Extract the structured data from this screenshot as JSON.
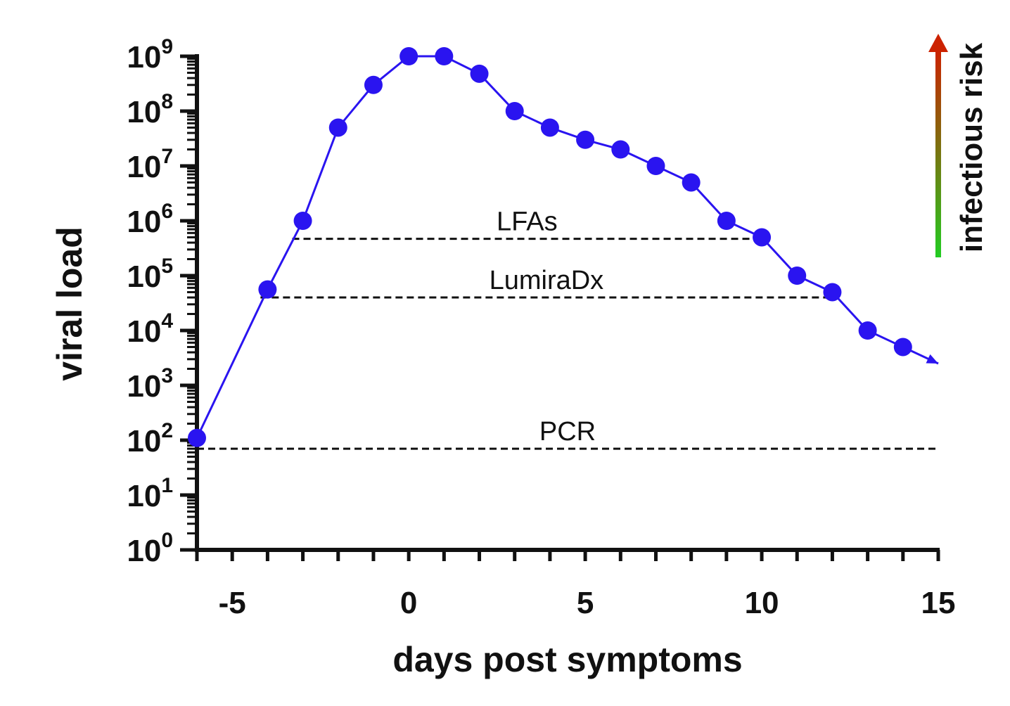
{
  "chart_data": {
    "type": "line",
    "title": "",
    "xlabel": "days post symptoms",
    "ylabel": "viral load",
    "xlim": [
      -6,
      15
    ],
    "ylim": [
      1,
      1000000000
    ],
    "y_scale": "log10",
    "grid": false,
    "x_ticks": [
      -5,
      0,
      5,
      10,
      15
    ],
    "y_ticks": [
      {
        "base": "10",
        "exp": "0",
        "value": 1
      },
      {
        "base": "10",
        "exp": "1",
        "value": 10
      },
      {
        "base": "10",
        "exp": "2",
        "value": 100
      },
      {
        "base": "10",
        "exp": "3",
        "value": 1000
      },
      {
        "base": "10",
        "exp": "4",
        "value": 10000
      },
      {
        "base": "10",
        "exp": "5",
        "value": 100000
      },
      {
        "base": "10",
        "exp": "6",
        "value": 1000000
      },
      {
        "base": "10",
        "exp": "7",
        "value": 10000000
      },
      {
        "base": "10",
        "exp": "8",
        "value": 100000000
      },
      {
        "base": "10",
        "exp": "9",
        "value": 1000000000
      }
    ],
    "series": [
      {
        "color": "#2a14f0",
        "marker": "circle",
        "trailing_arrow_to": {
          "x": 15,
          "y": 2500
        },
        "x": [
          -6,
          -4,
          -3,
          -2,
          -1,
          0,
          1,
          2,
          3,
          4,
          5,
          6,
          7,
          8,
          9,
          10,
          11,
          12,
          13,
          14
        ],
        "y": [
          110,
          56000,
          1000000,
          50000000,
          300000000,
          1000000000,
          1000000000,
          480000000,
          100000000,
          50000000,
          30000000,
          20000000,
          10000000,
          5000000,
          1000000,
          500000,
          100000,
          50000,
          10000,
          5000
        ]
      }
    ],
    "thresholds": [
      {
        "label": "LFAs",
        "y": 470000,
        "x_start": -3.3,
        "x_end": 10
      },
      {
        "label": "LumiraDx",
        "y": 40000,
        "x_start": -4.2,
        "x_end": 12
      },
      {
        "label": "PCR",
        "y": 70,
        "x_start": -6,
        "x_end": 15
      }
    ],
    "annotations": [
      {
        "text": "infectious risk",
        "arrow": "up",
        "color_from": "#22cc22",
        "color_to": "#cc2200"
      }
    ]
  }
}
